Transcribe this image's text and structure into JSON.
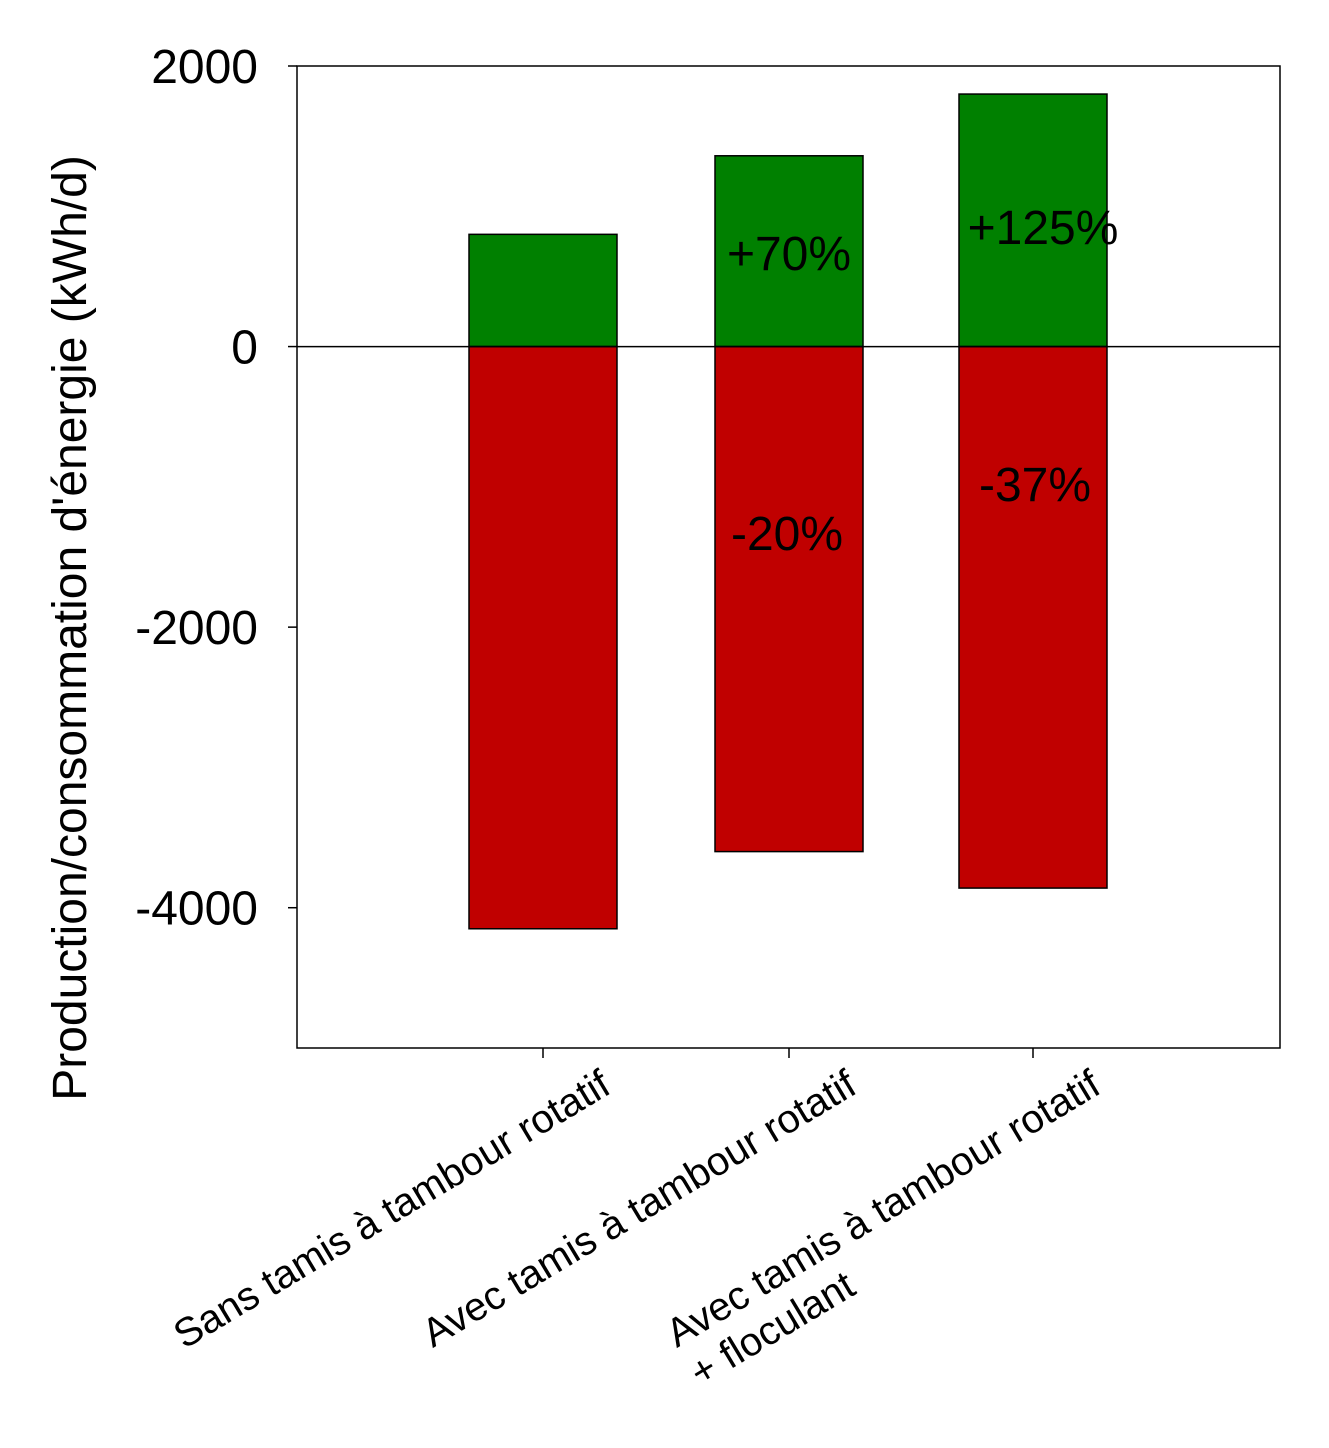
{
  "chart_data": {
    "type": "bar",
    "stacked_around_zero": true,
    "y_label": "Production/consommation d'énergie (kWh/d)",
    "categories": [
      "Sans tamis à tambour rotatif",
      "Avec tamis à tambour rotatif",
      "Avec tamis à tambour rotatif\n+ floculant"
    ],
    "series": [
      {
        "color": "#008000",
        "values": [
          800,
          1360,
          1800
        ]
      },
      {
        "color": "#c00000",
        "values": [
          -4150,
          -3600,
          -3860
        ]
      }
    ],
    "annotations": [
      "+70%",
      "+125%",
      "-20%",
      "-37%"
    ],
    "ylim": [
      -5000,
      2000
    ],
    "yticks": [
      -4000,
      -2000,
      0,
      2000
    ],
    "grid": false
  }
}
